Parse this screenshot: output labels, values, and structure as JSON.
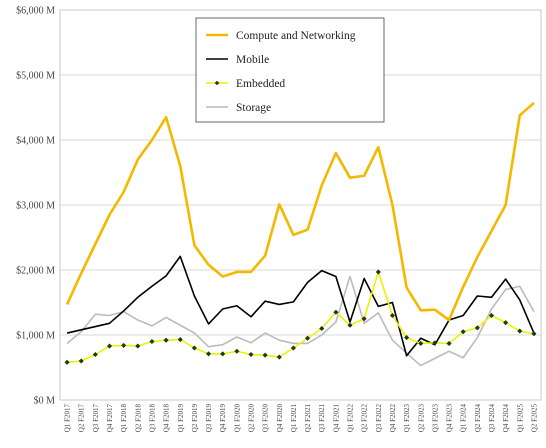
{
  "chart_data": {
    "type": "line",
    "title": "",
    "xlabel": "",
    "ylabel": "",
    "ylim": [
      0,
      6000
    ],
    "y_ticks": [
      0,
      1000,
      2000,
      3000,
      4000,
      5000,
      6000
    ],
    "y_tick_labels": [
      "$0 M",
      "$1,000 M",
      "$2,000 M",
      "$3,000 M",
      "$4,000 M",
      "$5,000 M",
      "$6,000 M"
    ],
    "grid": "horizontal",
    "legend_position": "top-center",
    "categories": [
      "Q1 F2017",
      "Q2 F2017",
      "Q3 F2017",
      "Q4 F2017",
      "Q1 F2018",
      "Q2 F2018",
      "Q3 F2018",
      "Q4 F2018",
      "Q1 F2019",
      "Q2 F2019",
      "Q3 F2019",
      "Q4 F2019",
      "Q1 F2020",
      "Q2 F2020",
      "Q3 F2020",
      "Q4 F2020",
      "Q1 F2021",
      "Q2 F2021",
      "Q3 F2021",
      "Q4 F2021",
      "Q1 F2022",
      "Q2 F2022",
      "Q3 F2022",
      "Q4 F2022",
      "Q1 F2023",
      "Q2 F2023",
      "Q3 F2023",
      "Q4 F2023",
      "Q1 F2024",
      "Q2 F2024",
      "Q3 F2024",
      "Q4 F2024",
      "Q1 F2025",
      "Q2 F2025"
    ],
    "series": [
      {
        "name": "Compute and Networking",
        "color": "#F5B800",
        "values": [
          1470,
          1950,
          2400,
          2850,
          3200,
          3700,
          4000,
          4350,
          3600,
          2380,
          2080,
          1900,
          1970,
          1970,
          2220,
          3010,
          2540,
          2620,
          3300,
          3800,
          3420,
          3450,
          3890,
          3000,
          1730,
          1380,
          1390,
          1230,
          1740,
          2200,
          2600,
          3000,
          4380,
          4570
        ]
      },
      {
        "name": "Mobile",
        "color": "#000000",
        "values": [
          1030,
          1080,
          1130,
          1180,
          1370,
          1580,
          1750,
          1910,
          2210,
          1600,
          1170,
          1400,
          1450,
          1280,
          1520,
          1470,
          1510,
          1810,
          1990,
          1900,
          1200,
          1870,
          1440,
          1500,
          680,
          950,
          850,
          1230,
          1300,
          1600,
          1580,
          1860,
          1540,
          1030
        ]
      },
      {
        "name": "Embedded",
        "color": "#F0F000",
        "marker": "diamond",
        "values": [
          580,
          600,
          700,
          830,
          840,
          830,
          900,
          920,
          930,
          800,
          710,
          710,
          750,
          700,
          690,
          660,
          800,
          950,
          1100,
          1350,
          1150,
          1250,
          1970,
          1300,
          960,
          870,
          880,
          870,
          1050,
          1110,
          1300,
          1190,
          1060,
          1020
        ]
      },
      {
        "name": "Storage",
        "color": "#BBBBBB",
        "values": [
          870,
          1050,
          1320,
          1300,
          1360,
          1230,
          1140,
          1270,
          1150,
          1030,
          820,
          850,
          970,
          880,
          1030,
          920,
          870,
          870,
          1000,
          1200,
          1900,
          1180,
          1340,
          920,
          720,
          530,
          640,
          750,
          650,
          960,
          1400,
          1700,
          1750,
          1360
        ]
      }
    ]
  }
}
